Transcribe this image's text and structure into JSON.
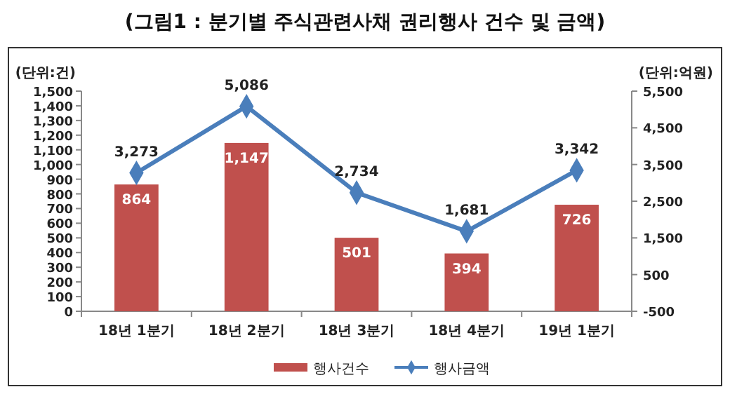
{
  "chart_data": {
    "type": "bar",
    "title": "(그림1 : 분기별 주식관련사채 권리행사 건수 및 금액)",
    "ylabel": "(단위:건)",
    "y2label": "(단위:억원)",
    "categories": [
      "18년 1분기",
      "18년 2분기",
      "18년 3분기",
      "18년 4분기",
      "19년 1분기"
    ],
    "series": [
      {
        "name": "행사건수",
        "color": "#c0504d",
        "values": [
          864,
          1147,
          501,
          394,
          726
        ],
        "value_labels": [
          "864",
          "1,147",
          "501",
          "394",
          "726"
        ]
      },
      {
        "name": "행사금액",
        "type": "line",
        "axis": "y2",
        "color": "#4a7ebb",
        "marker": "diamond",
        "values": [
          3273,
          5086,
          2734,
          1681,
          3342
        ],
        "value_labels": [
          "3,273",
          "5,086",
          "2,734",
          "1,681",
          "3,342"
        ]
      }
    ],
    "ylim": [
      0,
      1500
    ],
    "yticks": [
      {
        "value": 0,
        "label": "0"
      },
      {
        "value": 100,
        "label": "100"
      },
      {
        "value": 200,
        "label": "200"
      },
      {
        "value": 300,
        "label": "300"
      },
      {
        "value": 400,
        "label": "400"
      },
      {
        "value": 500,
        "label": "500"
      },
      {
        "value": 600,
        "label": "600"
      },
      {
        "value": 700,
        "label": "700"
      },
      {
        "value": 800,
        "label": "800"
      },
      {
        "value": 900,
        "label": "900"
      },
      {
        "value": 1000,
        "label": "1,000"
      },
      {
        "value": 1100,
        "label": "1,100"
      },
      {
        "value": 1200,
        "label": "1,200"
      },
      {
        "value": 1300,
        "label": "1,300"
      },
      {
        "value": 1400,
        "label": "1,400"
      },
      {
        "value": 1500,
        "label": "1,500"
      }
    ],
    "y2lim": [
      -500,
      5500
    ],
    "y2ticks": [
      {
        "value": -500,
        "label": "-500"
      },
      {
        "value": 500,
        "label": "500"
      },
      {
        "value": 1500,
        "label": "1,500"
      },
      {
        "value": 2500,
        "label": "2,500"
      },
      {
        "value": 3500,
        "label": "3,500"
      },
      {
        "value": 4500,
        "label": "4,500"
      },
      {
        "value": 5500,
        "label": "5,500"
      }
    ],
    "legend": "bottom",
    "grid": false
  }
}
